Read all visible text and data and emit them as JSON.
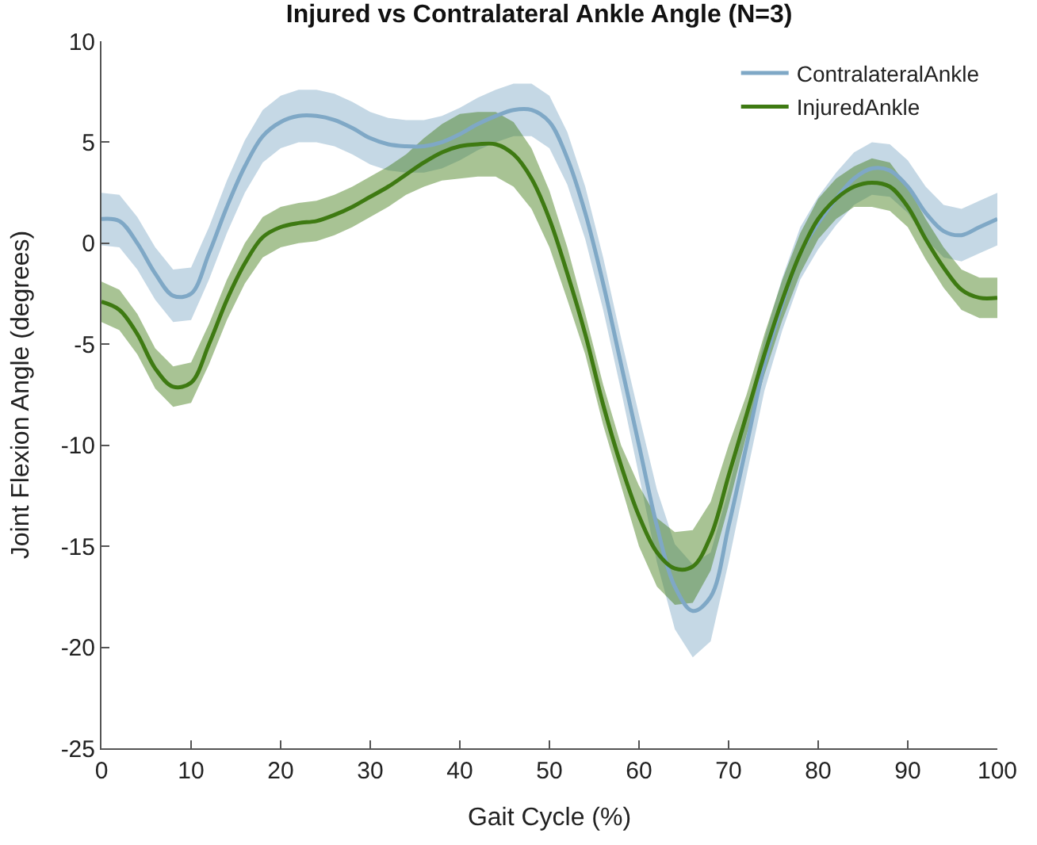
{
  "chart_data": {
    "type": "line",
    "title": "Injured vs Contralateral Ankle Angle (N=3)",
    "xlabel": "Gait Cycle (%)",
    "ylabel": "Joint Flexion Angle (degrees)",
    "x": [
      0,
      2,
      4,
      6,
      8,
      10,
      12,
      14,
      16,
      18,
      20,
      22,
      24,
      26,
      28,
      30,
      32,
      34,
      36,
      38,
      40,
      42,
      44,
      46,
      48,
      50,
      52,
      54,
      56,
      58,
      60,
      62,
      64,
      66,
      68,
      70,
      72,
      74,
      76,
      78,
      80,
      82,
      84,
      86,
      88,
      90,
      92,
      94,
      96,
      98,
      100
    ],
    "series": [
      {
        "name": "ContralateralAnkle",
        "color": "#7fa8c6",
        "values": [
          1.2,
          1.1,
          0,
          -1.5,
          -2.6,
          -2.5,
          -0.5,
          1.8,
          3.8,
          5.3,
          6.0,
          6.3,
          6.3,
          6.1,
          5.7,
          5.2,
          4.9,
          4.8,
          4.8,
          5.0,
          5.4,
          5.9,
          6.3,
          6.6,
          6.6,
          6.0,
          4.2,
          1.5,
          -2,
          -6,
          -10,
          -14,
          -17,
          -18.2,
          -17.5,
          -14,
          -10,
          -6,
          -3,
          -0.5,
          1,
          2.2,
          3.2,
          3.7,
          3.6,
          2.8,
          1.5,
          0.6,
          0.4,
          0.8,
          1.2
        ],
        "lower": [
          -0.1,
          -0.2,
          -1.3,
          -2.8,
          -3.9,
          -3.8,
          -1.8,
          0.5,
          2.5,
          4.0,
          4.7,
          5.0,
          5.0,
          4.8,
          4.4,
          3.9,
          3.6,
          3.5,
          3.5,
          3.7,
          4.1,
          4.6,
          5.0,
          5.3,
          5.3,
          4.7,
          2.9,
          0.2,
          -3.3,
          -7.3,
          -11.5,
          -15.8,
          -19.1,
          -20.5,
          -19.7,
          -15.8,
          -11.5,
          -7.3,
          -4.3,
          -1.8,
          -0.3,
          0.9,
          1.9,
          2.4,
          2.3,
          1.5,
          0.2,
          -0.7,
          -0.9,
          -0.5,
          -0.1
        ],
        "upper": [
          2.5,
          2.4,
          1.3,
          -0.2,
          -1.3,
          -1.2,
          0.8,
          3.1,
          5.1,
          6.6,
          7.3,
          7.6,
          7.6,
          7.4,
          7.0,
          6.5,
          6.2,
          6.1,
          6.1,
          6.3,
          6.7,
          7.2,
          7.6,
          7.9,
          7.9,
          7.3,
          5.5,
          2.8,
          -0.7,
          -4.7,
          -8.5,
          -12.2,
          -14.9,
          -15.9,
          -15.3,
          -12.2,
          -8.5,
          -4.7,
          -1.7,
          0.8,
          2.3,
          3.5,
          4.5,
          5.0,
          4.9,
          4.1,
          2.8,
          1.9,
          1.7,
          2.1,
          2.5
        ]
      },
      {
        "name": "InjuredAnkle",
        "color": "#3e7a12",
        "values": [
          -2.9,
          -3.3,
          -4.5,
          -6.2,
          -7.1,
          -6.9,
          -5,
          -2.8,
          -1,
          0.3,
          0.8,
          1.0,
          1.1,
          1.4,
          1.8,
          2.3,
          2.8,
          3.4,
          4.0,
          4.5,
          4.8,
          4.9,
          4.9,
          4.4,
          3.2,
          1.2,
          -1.5,
          -4.5,
          -8,
          -11,
          -13.5,
          -15.3,
          -16.1,
          -16,
          -14.5,
          -11.5,
          -8.5,
          -5.5,
          -2.8,
          -0.5,
          1.2,
          2.2,
          2.8,
          3.0,
          2.8,
          1.8,
          0.2,
          -1.2,
          -2.3,
          -2.7,
          -2.7
        ],
        "lower": [
          -3.9,
          -4.3,
          -5.5,
          -7.2,
          -8.1,
          -7.9,
          -6.0,
          -3.8,
          -2.0,
          -0.7,
          -0.2,
          0.0,
          0.1,
          0.4,
          0.8,
          1.3,
          1.8,
          2.4,
          2.8,
          3.1,
          3.2,
          3.3,
          3.3,
          2.8,
          1.7,
          -0.2,
          -2.8,
          -5.5,
          -9.0,
          -12.0,
          -15.0,
          -17.0,
          -17.9,
          -17.8,
          -16.2,
          -13.0,
          -9.5,
          -6.5,
          -3.8,
          -1.5,
          0.2,
          1.2,
          1.8,
          1.8,
          1.6,
          0.8,
          -0.8,
          -2.2,
          -3.3,
          -3.7,
          -3.7
        ],
        "upper": [
          -1.9,
          -2.3,
          -3.5,
          -5.2,
          -6.1,
          -5.9,
          -4.0,
          -1.8,
          0.0,
          1.3,
          1.8,
          2.0,
          2.1,
          2.4,
          2.8,
          3.3,
          3.8,
          4.4,
          5.2,
          5.9,
          6.4,
          6.5,
          6.5,
          6.0,
          4.7,
          2.6,
          -0.2,
          -3.5,
          -7.0,
          -10.0,
          -12.0,
          -13.6,
          -14.3,
          -14.2,
          -12.8,
          -10.0,
          -7.5,
          -4.5,
          -1.8,
          0.5,
          2.2,
          3.2,
          3.8,
          4.2,
          4.0,
          2.8,
          1.2,
          -0.2,
          -1.3,
          -1.7,
          -1.7
        ]
      }
    ],
    "xlim": [
      0,
      100
    ],
    "xticks": [
      0,
      10,
      20,
      30,
      40,
      50,
      60,
      70,
      80,
      90,
      100
    ],
    "ylim": [
      -25,
      10
    ],
    "yticks": [
      -25,
      -20,
      -15,
      -10,
      -5,
      0,
      5,
      10
    ],
    "grid": false,
    "legend": "top right",
    "marker": "none",
    "line_style": "solid"
  }
}
